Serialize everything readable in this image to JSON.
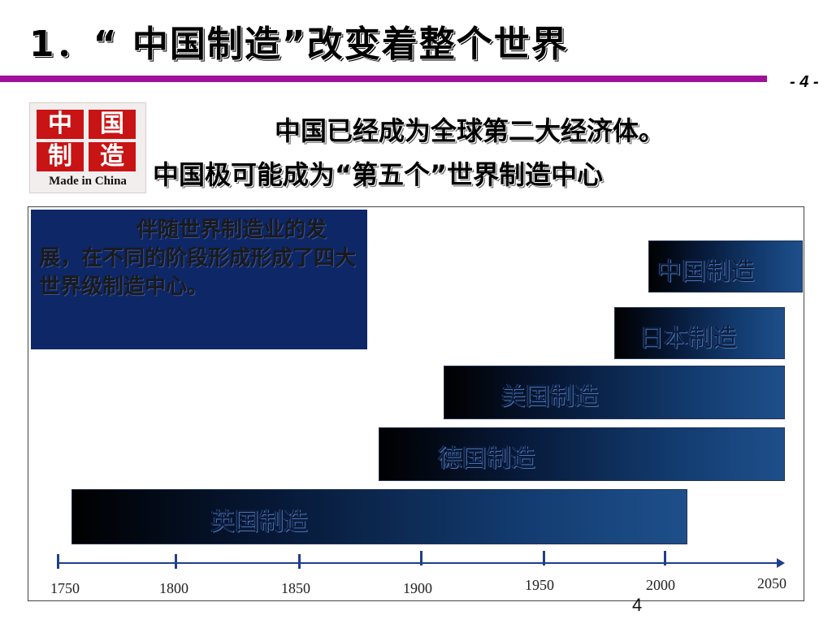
{
  "slide": {
    "title": "1．“ 中国制造”改变着整个世界",
    "page_number": "- 4 -",
    "footer_number": "4",
    "accent_color": "#a0109a"
  },
  "logo": {
    "chars": [
      "中",
      "国",
      "制",
      "造"
    ],
    "caption": "Made in China",
    "color": "#c81414"
  },
  "headline": {
    "line1": "中国已经成为全球第二大经济体。",
    "line2": "中国极可能成为“第五个”世界制造中心"
  },
  "info_box": {
    "text": "伴随世界制造业的发展，在不同的阶段形成形成了四大世界级制造中心。",
    "color": "#0e2766"
  },
  "timeline": {
    "bars": [
      {
        "label": "中国制造"
      },
      {
        "label": "日本制造"
      },
      {
        "label": "美国制造"
      },
      {
        "label": "德国制造"
      },
      {
        "label": "英国制造"
      }
    ],
    "axis_labels": [
      "1750",
      "1800",
      "1850",
      "1900",
      "1950",
      "2000",
      "2050"
    ]
  }
}
